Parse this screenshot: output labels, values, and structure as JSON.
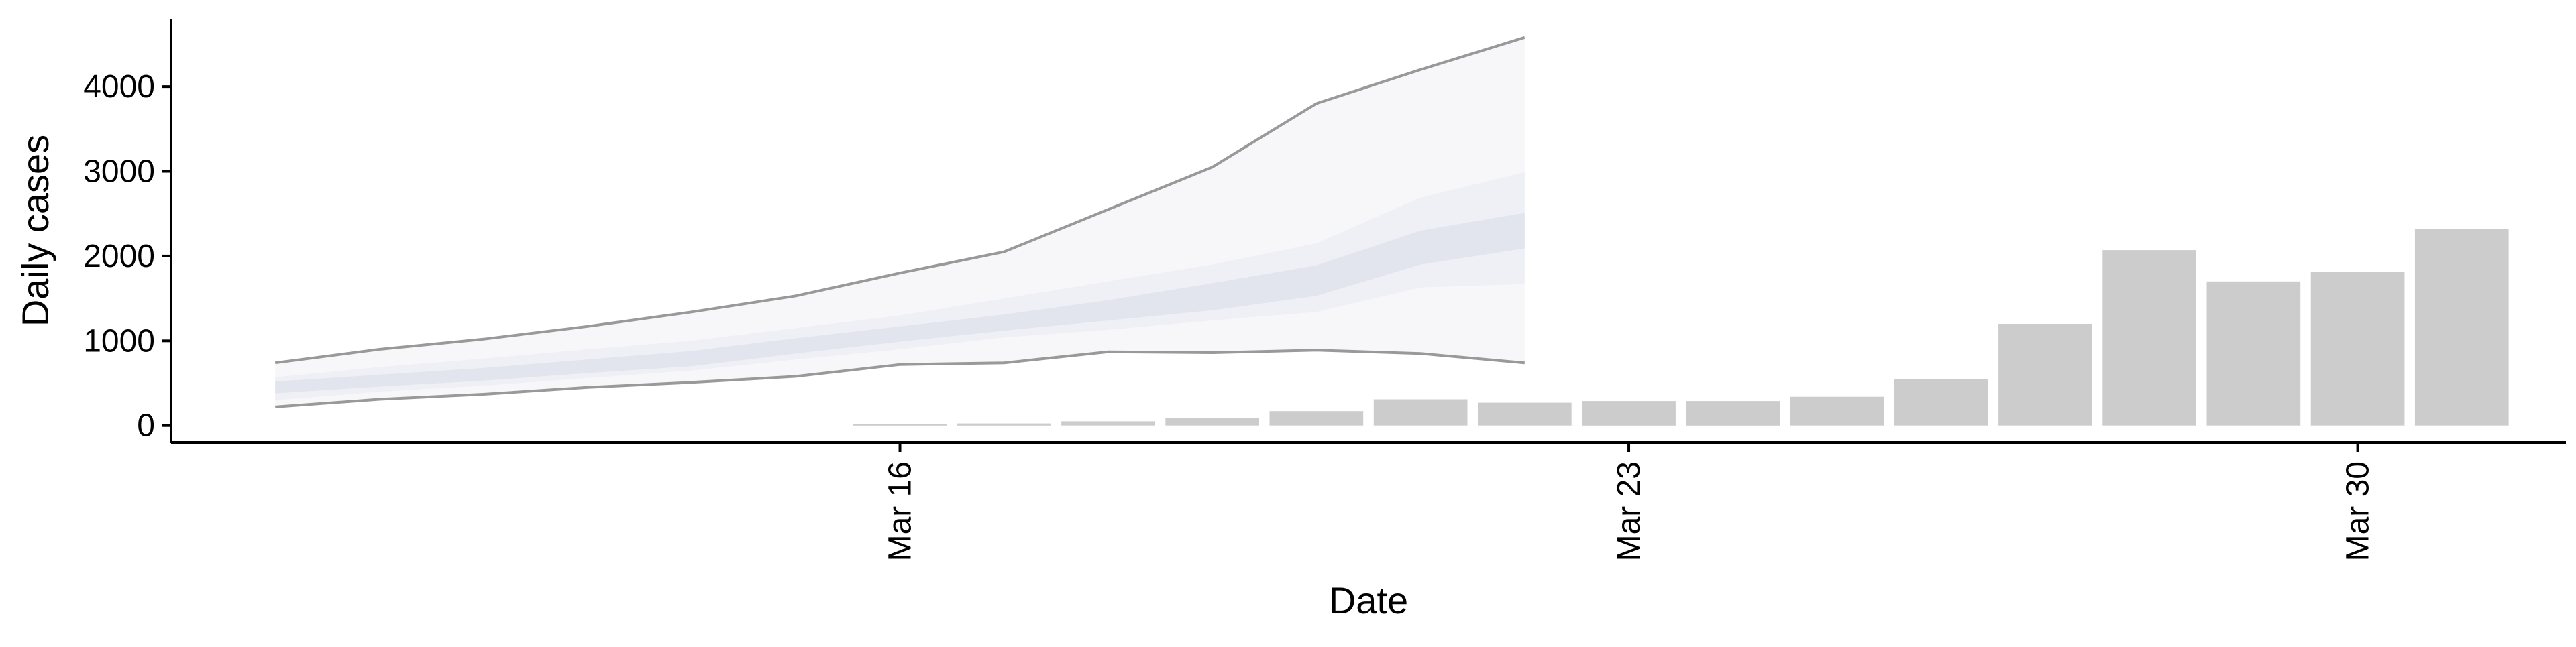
{
  "chart_data": {
    "type": "bar",
    "xlabel": "Date",
    "ylabel": "Daily cases",
    "x_axis": {
      "type": "date",
      "range": [
        "2020-03-09",
        "2020-04-01"
      ],
      "ticks": [
        {
          "date": "2020-03-16",
          "label": "Mar 16"
        },
        {
          "date": "2020-03-23",
          "label": "Mar 23"
        },
        {
          "date": "2020-03-30",
          "label": "Mar 30"
        }
      ]
    },
    "y_axis": {
      "range": [
        -200,
        4800
      ],
      "ticks": [
        {
          "value": 0,
          "label": "0"
        },
        {
          "value": 1000,
          "label": "1000"
        },
        {
          "value": 2000,
          "label": "2000"
        },
        {
          "value": 3000,
          "label": "3000"
        },
        {
          "value": 4000,
          "label": "4000"
        }
      ]
    },
    "grid": false,
    "legend": "none",
    "bars": {
      "color": "#cccccc",
      "points": [
        {
          "date": "2020-03-16",
          "value": 15
        },
        {
          "date": "2020-03-17",
          "value": 25
        },
        {
          "date": "2020-03-18",
          "value": 50
        },
        {
          "date": "2020-03-19",
          "value": 90
        },
        {
          "date": "2020-03-20",
          "value": 170
        },
        {
          "date": "2020-03-21",
          "value": 310
        },
        {
          "date": "2020-03-22",
          "value": 270
        },
        {
          "date": "2020-03-23",
          "value": 290
        },
        {
          "date": "2020-03-24",
          "value": 290
        },
        {
          "date": "2020-03-25",
          "value": 340
        },
        {
          "date": "2020-03-26",
          "value": 550
        },
        {
          "date": "2020-03-27",
          "value": 1200
        },
        {
          "date": "2020-03-28",
          "value": 2070
        },
        {
          "date": "2020-03-29",
          "value": 1700
        },
        {
          "date": "2020-03-30",
          "value": 1810
        },
        {
          "date": "2020-03-31",
          "value": 2320
        }
      ]
    },
    "forecast": {
      "dates": [
        "2020-03-10",
        "2020-03-11",
        "2020-03-12",
        "2020-03-13",
        "2020-03-14",
        "2020-03-15",
        "2020-03-16",
        "2020-03-17",
        "2020-03-18",
        "2020-03-19",
        "2020-03-20",
        "2020-03-21",
        "2020-03-22"
      ],
      "outer_color": "#999999",
      "colors": [
        "#d5d9e6",
        "#e2e5ee",
        "#eef0f5",
        "#f7f7fa"
      ],
      "band_90": {
        "lower": [
          220,
          310,
          370,
          450,
          510,
          580,
          720,
          740,
          870,
          860,
          890,
          850,
          740
        ],
        "upper": [
          740,
          900,
          1020,
          1170,
          1340,
          1530,
          1800,
          2050,
          2550,
          3050,
          3800,
          4200,
          4580
        ]
      },
      "band_50": {
        "lower": [
          300,
          400,
          470,
          560,
          650,
          780,
          900,
          1040,
          1130,
          1240,
          1340,
          1630,
          1670
        ],
        "upper": [
          570,
          690,
          790,
          900,
          1000,
          1150,
          1300,
          1500,
          1700,
          1900,
          2150,
          2690,
          2990
        ]
      },
      "band_20": {
        "lower": [
          380,
          460,
          530,
          620,
          700,
          850,
          990,
          1120,
          1240,
          1360,
          1530,
          1900,
          2090
        ],
        "upper": [
          520,
          600,
          680,
          780,
          880,
          1030,
          1170,
          1310,
          1480,
          1680,
          1890,
          2300,
          2510
        ]
      }
    }
  }
}
